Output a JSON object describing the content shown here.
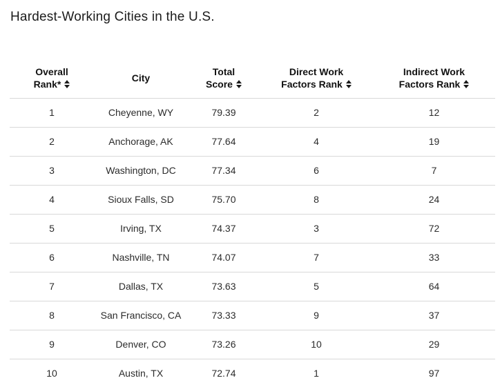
{
  "page": {
    "title": "Hardest-Working Cities in the U.S."
  },
  "colors": {
    "divider": "#d8d8d8",
    "header_text": "#111111",
    "body_text": "#2b2b2b",
    "background": "#ffffff"
  },
  "table": {
    "columns": [
      {
        "label_line1": "Overall",
        "label_line2": "Rank*",
        "sortable": true,
        "icon": "sort-arrows-icon"
      },
      {
        "label_line1": "City",
        "label_line2": "",
        "sortable": false,
        "icon": ""
      },
      {
        "label_line1": "Total",
        "label_line2": "Score",
        "sortable": true,
        "icon": "sort-arrows-icon"
      },
      {
        "label_line1": "Direct Work",
        "label_line2": "Factors Rank",
        "sortable": true,
        "icon": "sort-arrows-icon"
      },
      {
        "label_line1": "Indirect Work",
        "label_line2": "Factors Rank",
        "sortable": true,
        "icon": "sort-arrows-icon"
      }
    ],
    "rows": [
      {
        "overall_rank": "1",
        "city": "Cheyenne, WY",
        "total_score": "79.39",
        "direct_rank": "2",
        "indirect_rank": "12"
      },
      {
        "overall_rank": "2",
        "city": "Anchorage, AK",
        "total_score": "77.64",
        "direct_rank": "4",
        "indirect_rank": "19"
      },
      {
        "overall_rank": "3",
        "city": "Washington, DC",
        "total_score": "77.34",
        "direct_rank": "6",
        "indirect_rank": "7"
      },
      {
        "overall_rank": "4",
        "city": "Sioux Falls, SD",
        "total_score": "75.70",
        "direct_rank": "8",
        "indirect_rank": "24"
      },
      {
        "overall_rank": "5",
        "city": "Irving, TX",
        "total_score": "74.37",
        "direct_rank": "3",
        "indirect_rank": "72"
      },
      {
        "overall_rank": "6",
        "city": "Nashville, TN",
        "total_score": "74.07",
        "direct_rank": "7",
        "indirect_rank": "33"
      },
      {
        "overall_rank": "7",
        "city": "Dallas, TX",
        "total_score": "73.63",
        "direct_rank": "5",
        "indirect_rank": "64"
      },
      {
        "overall_rank": "8",
        "city": "San Francisco, CA",
        "total_score": "73.33",
        "direct_rank": "9",
        "indirect_rank": "37"
      },
      {
        "overall_rank": "9",
        "city": "Denver, CO",
        "total_score": "73.26",
        "direct_rank": "10",
        "indirect_rank": "29"
      },
      {
        "overall_rank": "10",
        "city": "Austin, TX",
        "total_score": "72.74",
        "direct_rank": "1",
        "indirect_rank": "97"
      }
    ]
  }
}
